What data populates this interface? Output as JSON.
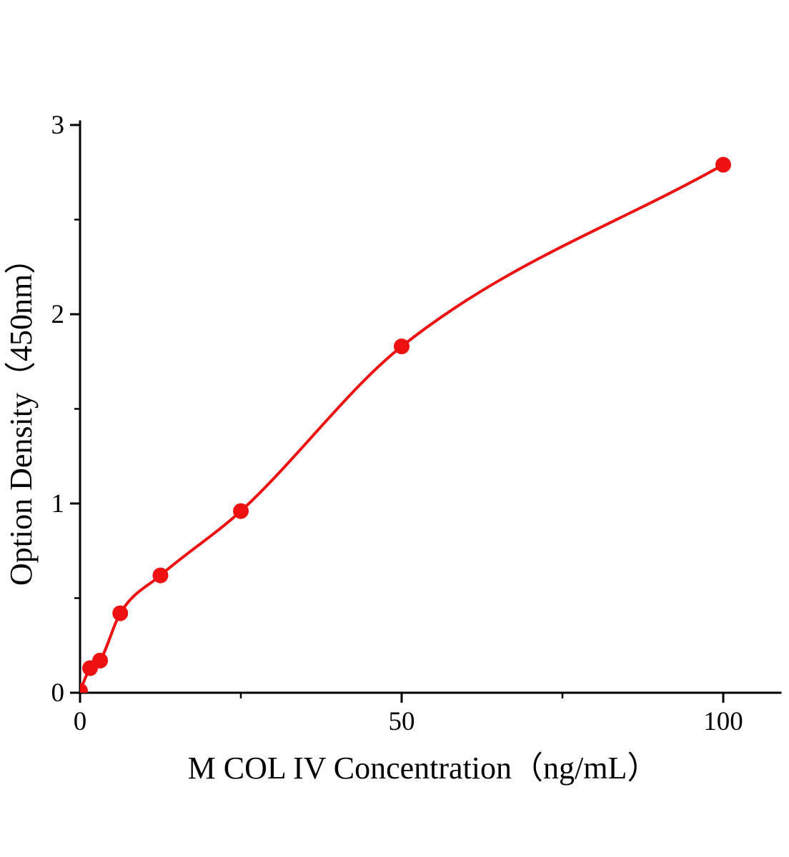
{
  "chart_data": {
    "type": "scatter",
    "title": "",
    "xlabel": "M COL IV Concentration（ng/mL）",
    "ylabel": "Option Density（450nm）",
    "x": [
      0,
      1.56,
      3.12,
      6.25,
      12.5,
      25,
      50,
      100
    ],
    "y": [
      0.01,
      0.13,
      0.17,
      0.42,
      0.62,
      0.96,
      1.83,
      2.79
    ],
    "has_fit_curve": true,
    "marker_color": "#ee1111",
    "line_color": "#ee1111",
    "axis_color": "#000000",
    "background_color": "#ffffff",
    "xlim": [
      0,
      108
    ],
    "ylim": [
      0,
      3
    ],
    "x_major_ticks": [
      0,
      50,
      100
    ],
    "x_minor_ticks": [
      25,
      75
    ],
    "y_major_ticks": [
      0,
      1,
      2,
      3
    ],
    "y_minor_ticks": [
      0.5,
      1.5,
      2.5
    ],
    "grid": false,
    "legend": false
  }
}
